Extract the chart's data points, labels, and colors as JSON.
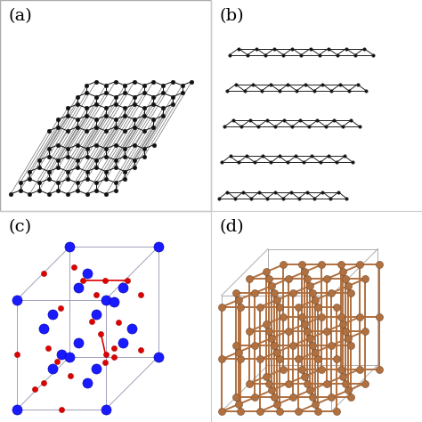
{
  "bg_color": "#ffffff",
  "panel_bg_a": "#ffffff",
  "panel_bg_b": "#ffffff",
  "panel_bg_c": "#ffffff",
  "panel_bg_d": "#ffffff",
  "label_a": "(a)",
  "label_b": "(b)",
  "label_c": "(c)",
  "label_d": "(d)",
  "atom_color_ab": "#111111",
  "atom_color_c_blue": "#1a1aff",
  "atom_color_c_red": "#dd0000",
  "atom_color_d": "#b07040",
  "bond_color_ab": "#111111",
  "bond_color_c_red": "#dd0000",
  "bond_color_c_box": "#8888aa",
  "bond_color_d": "#b07040",
  "bond_color_d_box": "#999999",
  "label_fontsize": 14,
  "divider_color": "#cccccc"
}
